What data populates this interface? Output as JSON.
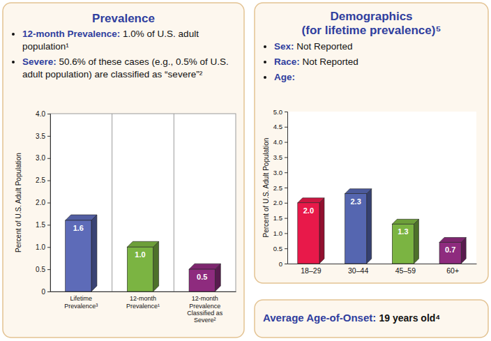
{
  "chart_data": [
    {
      "type": "bar",
      "title": "Prevalence",
      "annotations": [
        {
          "label": "12-month Prevalence:",
          "text": "1.0% of U.S. adult population¹"
        },
        {
          "label": "Severe:",
          "text": "50.6% of these cases (e.g., 0.5% of U.S. adult population) are classified as “severe”²"
        }
      ],
      "ylabel": "Percent of U.S. Adult Population",
      "categories": [
        "Lifetime Prevalence³",
        "12-month Prevalence¹",
        "12-month Prevalence Classified as Severe²"
      ],
      "values": [
        1.6,
        1.0,
        0.5
      ],
      "value_labels": [
        "1.6",
        "1.0",
        "0.5"
      ],
      "colors": [
        "#5d6bb8",
        "#7bb442",
        "#8e2b7e"
      ],
      "ylim": [
        0,
        4
      ],
      "yticks": [
        0,
        0.5,
        {
          "value": 1,
          "label": "1.0"
        },
        1.5,
        {
          "value": 2,
          "label": "2.0"
        },
        2.5,
        {
          "value": 3,
          "label": "3.0"
        },
        3.5,
        {
          "value": 4,
          "label": "4.0"
        }
      ],
      "grid": false,
      "data_labels": true
    },
    {
      "type": "bar",
      "title": "Demographics",
      "subtitle": "(for lifetime prevalence)⁵",
      "annotations": [
        {
          "label": "Sex:",
          "text": "Not Reported"
        },
        {
          "label": "Race:",
          "text": "Not Reported"
        },
        {
          "label": "Age:"
        }
      ],
      "ylabel": "Percent of U.S. Adult Population",
      "categories": [
        "18–29",
        "30–44",
        "45–59",
        "60+"
      ],
      "values": [
        2.0,
        2.3,
        1.3,
        0.7
      ],
      "value_labels": [
        "2.0",
        "2.3",
        "1.3",
        "0.7"
      ],
      "colors": [
        "#e8194a",
        "#5566b0",
        "#7bb442",
        "#8e2b7e"
      ],
      "ylim": [
        0,
        5
      ],
      "yticks": [
        0,
        0.5,
        {
          "value": 1,
          "label": "1.0"
        },
        1.5,
        {
          "value": 2,
          "label": "2.0"
        },
        2.5,
        {
          "value": 3,
          "label": "3.0"
        },
        3.5,
        {
          "value": 4,
          "label": "4.0"
        },
        4.5,
        {
          "value": 5,
          "label": "5.0"
        }
      ],
      "grid": false,
      "data_labels": true
    }
  ],
  "callout": {
    "label": "Average Age-of-Onset:",
    "text": "19 years old⁴"
  }
}
